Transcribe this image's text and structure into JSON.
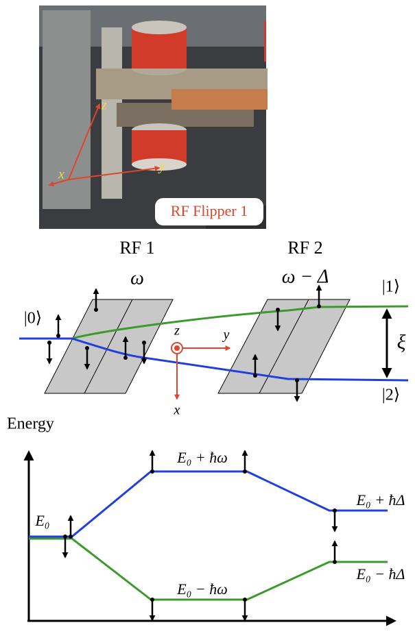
{
  "photo": {
    "label": "RF Flipper 1",
    "axes": {
      "x": "x",
      "y": "y",
      "z": "z"
    }
  },
  "schematic": {
    "flippers": [
      {
        "name": "RF 1",
        "frequency": "ω"
      },
      {
        "name": "RF 2",
        "frequency": "ω − Δ"
      }
    ],
    "states": [
      "|0⟩",
      "|1⟩",
      "|2⟩"
    ],
    "separation": "ξ",
    "axes": {
      "x": "x",
      "y": "y",
      "z": "z"
    }
  },
  "energy_diagram": {
    "axis_label": "Energy",
    "levels": [
      "E₀",
      "E₀ + ħω",
      "E₀ − ħω",
      "E₀ + ħΔ",
      "E₀ − ħΔ"
    ]
  }
}
